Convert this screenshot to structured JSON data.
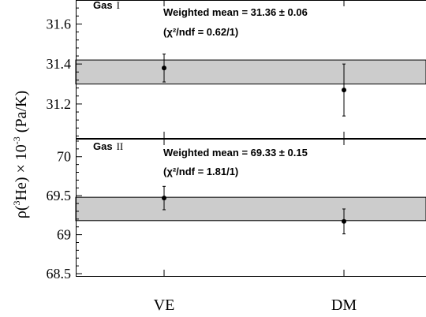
{
  "chart_data": [
    {
      "type": "scatter",
      "panel_label": "Gas",
      "panel_numeral": "I",
      "annotation_line1": "Weighted mean = 31.36 ± 0.06",
      "annotation_line2": "(χ²/ndf = 0.62/1)",
      "categories": [
        "VE",
        "DM"
      ],
      "values": [
        31.38,
        31.27
      ],
      "errors": [
        0.07,
        0.13
      ],
      "band": [
        31.3,
        31.42
      ],
      "ylim": [
        31.03,
        31.72
      ],
      "yticks": [
        31.2,
        31.4,
        31.6
      ],
      "ytick_labels": [
        "31.2",
        "31.4",
        "31.6"
      ]
    },
    {
      "type": "scatter",
      "panel_label": "Gas",
      "panel_numeral": "II",
      "annotation_line1": "Weighted mean = 69.33 ± 0.15",
      "annotation_line2": "(χ²/ndf = 1.81/1)",
      "categories": [
        "VE",
        "DM"
      ],
      "values": [
        69.47,
        69.17
      ],
      "errors": [
        0.15,
        0.16
      ],
      "band": [
        69.18,
        69.48
      ],
      "ylim": [
        68.47,
        70.23
      ],
      "yticks": [
        68.5,
        69,
        69.5,
        70
      ],
      "ytick_labels": [
        "68.5",
        "69",
        "69.5",
        "70"
      ]
    }
  ],
  "ylabel": {
    "prefix": "ρ(",
    "iso_sup": "3",
    "mid": "He) × 10",
    "exp_sup": "-3",
    "suffix": " (Pa/K)"
  },
  "colors": {
    "band": "#cccccc",
    "ink": "#000000"
  }
}
